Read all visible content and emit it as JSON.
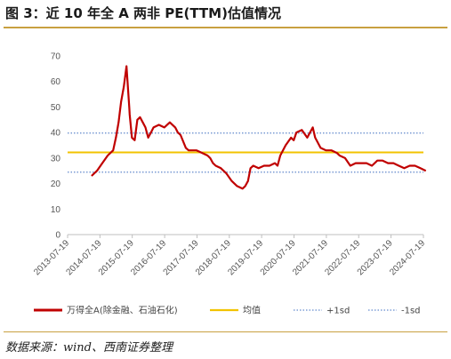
{
  "figure": {
    "title": "图 3：近 10 年全 A 两非 PE(TTM)估值情况",
    "source": "数据来源：wind、西南证券整理"
  },
  "chart_data": {
    "type": "line",
    "title": "",
    "xlabel": "",
    "ylabel": "",
    "ylim": [
      0,
      70
    ],
    "yticks": [
      0,
      10,
      20,
      30,
      40,
      50,
      60,
      70
    ],
    "xticks": [
      "2013-07-19",
      "2014-07-19",
      "2015-07-19",
      "2016-07-19",
      "2017-07-19",
      "2018-07-19",
      "2019-07-19",
      "2020-07-19",
      "2021-07-19",
      "2022-07-19",
      "2023-07-19",
      "2024-07-19"
    ],
    "grid": false,
    "legend_position": "bottom",
    "colors": {
      "pe": "#c00000",
      "mean": "#f2c300",
      "plus_sd": "#7f9fd6",
      "minus_sd": "#7f9fd6"
    },
    "series": [
      {
        "name": "万得全A(除金融、石油石化)",
        "style": "solid",
        "x": [
          "2014-04",
          "2014-06",
          "2014-08",
          "2014-10",
          "2014-12",
          "2015-01",
          "2015-02",
          "2015-03",
          "2015-04",
          "2015-05",
          "2015-06",
          "2015-06-20",
          "2015-07",
          "2015-08",
          "2015-09",
          "2015-10",
          "2015-11",
          "2015-12",
          "2016-01",
          "2016-02",
          "2016-03",
          "2016-05",
          "2016-07",
          "2016-09",
          "2016-11",
          "2016-12",
          "2017-01",
          "2017-03",
          "2017-04",
          "2017-05",
          "2017-07",
          "2017-09",
          "2017-11",
          "2017-12",
          "2018-01",
          "2018-02",
          "2018-04",
          "2018-06",
          "2018-08",
          "2018-10",
          "2018-12",
          "2019-01",
          "2019-02",
          "2019-03",
          "2019-04",
          "2019-06",
          "2019-08",
          "2019-10",
          "2019-12",
          "2020-01",
          "2020-02",
          "2020-04",
          "2020-06",
          "2020-07",
          "2020-08",
          "2020-10",
          "2020-12",
          "2021-02",
          "2021-03",
          "2021-05",
          "2021-07",
          "2021-09",
          "2021-11",
          "2021-12",
          "2022-02",
          "2022-04",
          "2022-06",
          "2022-08",
          "2022-10",
          "2022-12",
          "2023-02",
          "2023-04",
          "2023-06",
          "2023-08",
          "2023-10",
          "2023-12",
          "2024-02",
          "2024-04",
          "2024-06",
          "2024-08"
        ],
        "values": [
          23,
          25,
          28,
          31,
          33,
          38,
          44,
          52,
          58,
          66,
          50,
          47,
          38,
          37,
          45,
          46,
          44,
          42,
          38,
          40,
          42,
          43,
          42,
          44,
          42,
          40,
          39,
          34,
          33,
          33,
          33,
          32,
          31,
          30,
          28,
          27,
          26,
          24,
          21,
          19,
          18,
          19,
          21,
          26,
          27,
          26,
          27,
          27,
          28,
          27,
          31,
          35,
          38,
          37,
          40,
          41,
          38,
          42,
          38,
          34,
          33,
          33,
          32,
          31,
          30,
          27,
          28,
          28,
          28,
          27,
          29,
          29,
          28,
          28,
          27,
          26,
          27,
          27,
          26,
          25
        ]
      },
      {
        "name": "均值",
        "style": "solid",
        "values": [
          32.2
        ]
      },
      {
        "name": "+1sd",
        "style": "dotted",
        "values": [
          39.8
        ]
      },
      {
        "name": "-1sd",
        "style": "dotted",
        "values": [
          24.5
        ]
      }
    ]
  }
}
